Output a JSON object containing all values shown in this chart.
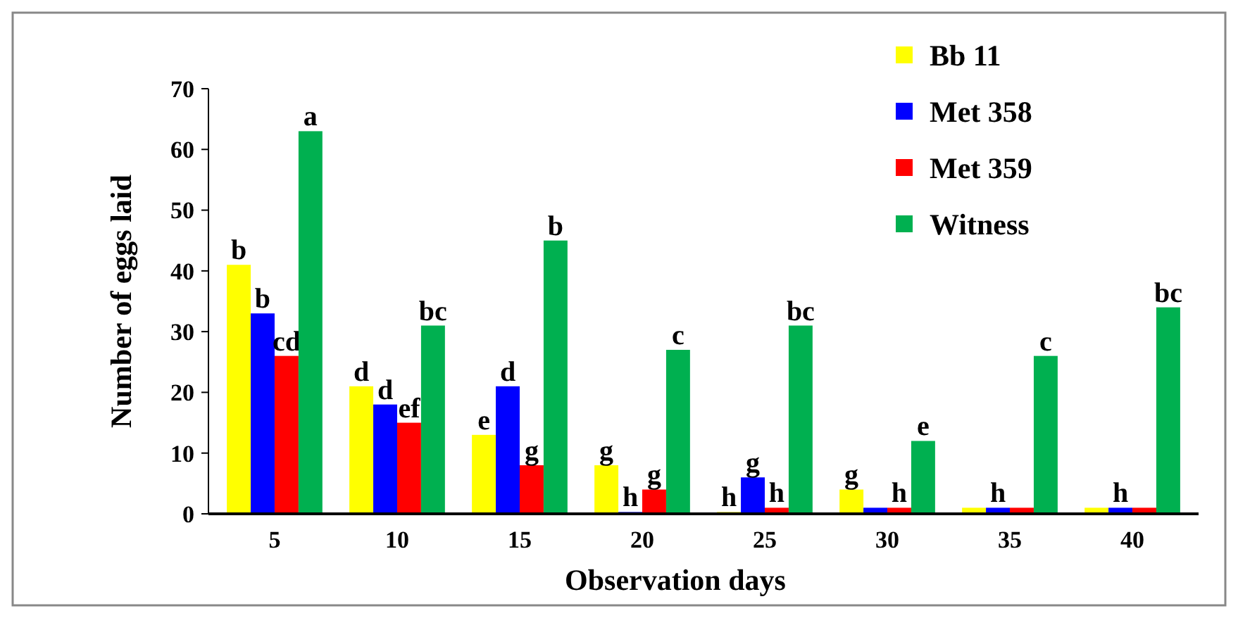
{
  "chart_data": {
    "type": "bar",
    "xlabel": "Observation days",
    "ylabel": "Number of eggs laid",
    "categories": [
      "5",
      "10",
      "15",
      "20",
      "25",
      "30",
      "35",
      "40"
    ],
    "ylim": [
      0,
      70
    ],
    "yticks": [
      0,
      10,
      20,
      30,
      40,
      50,
      60,
      70
    ],
    "grid": false,
    "legend": "top right",
    "series": [
      {
        "name": "Bb 11",
        "color": "#ffff00",
        "values": [
          41,
          21,
          13,
          8,
          0.3,
          4,
          1,
          1
        ],
        "value_labels": [
          "b",
          "d",
          "e",
          "g",
          "h",
          "g",
          null,
          null
        ]
      },
      {
        "name": "Met 358",
        "color": "#0000ff",
        "values": [
          33,
          18,
          21,
          0.3,
          6,
          1,
          1,
          1
        ],
        "value_labels": [
          "b",
          "d",
          "d",
          "h",
          "g",
          null,
          "h",
          "h"
        ]
      },
      {
        "name": "Met 359",
        "color": "#ff0000",
        "values": [
          26,
          15,
          8,
          4,
          1,
          1,
          1,
          1
        ],
        "value_labels": [
          "cd",
          "ef",
          "g",
          "g",
          "h",
          "h",
          null,
          null
        ]
      },
      {
        "name": "Witness",
        "color": "#00b050",
        "values": [
          63,
          31,
          45,
          27,
          31,
          12,
          26,
          34
        ],
        "value_labels": [
          "a",
          "bc",
          "b",
          "c",
          "bc",
          "e",
          "c",
          "bc"
        ]
      }
    ]
  }
}
